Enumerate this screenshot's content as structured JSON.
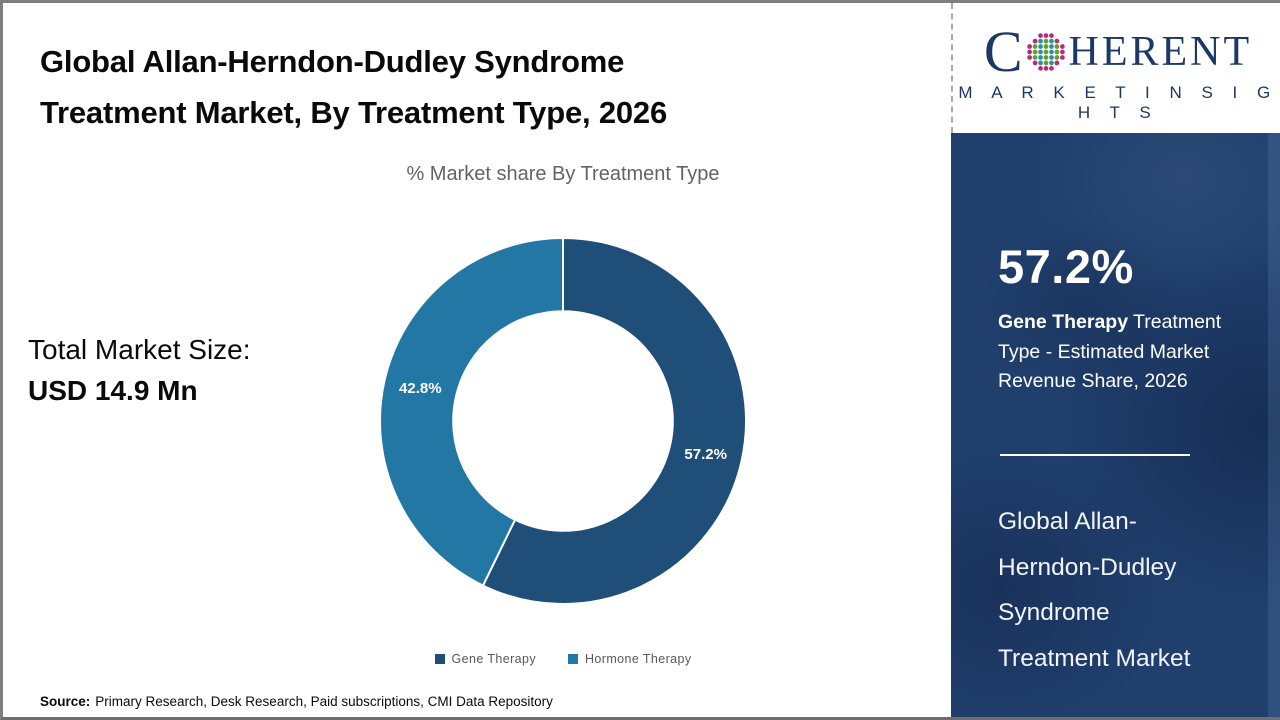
{
  "title": {
    "text": "Global Allan-Herndon-Dudley Syndrome\nTreatment Market, By Treatment Type, 2026"
  },
  "subtitle": "% Market share By Treatment Type",
  "total_market": {
    "label": "Total Market Size:",
    "value": "USD 14.9 Mn"
  },
  "source": {
    "label": "Source:",
    "text": "Primary Research, Desk Research, Paid subscriptions, CMI Data Repository"
  },
  "logo": {
    "first_letter": "C",
    "rest": "HERENT",
    "tagline": "M A R K E T   I N S I G H T S"
  },
  "sidebar": {
    "stat_value": "57.2%",
    "stat_bold": "Gene Therapy",
    "stat_rest": "Treatment Type - Estimated Market Revenue Share, 2026",
    "market_name": "Global Allan-\nHerndon-Dudley\nSyndrome\nTreatment Market"
  },
  "colors": {
    "gene_therapy": "#1f4e79",
    "hormone_therapy": "#2377a4",
    "panel_navy": "#203f6d",
    "logo_navy": "#1d3766",
    "legend_text": "#595959"
  },
  "chart_data": {
    "type": "pie",
    "donut": true,
    "title": "% Market share By Treatment Type",
    "categories": [
      "Gene Therapy",
      "Hormone Therapy"
    ],
    "series": [
      {
        "name": "Gene Therapy",
        "value": 57.2,
        "color": "#1f4e79",
        "label": "57.2%"
      },
      {
        "name": "Hormone Therapy",
        "value": 42.8,
        "color": "#2377a4",
        "label": "42.8%"
      }
    ],
    "start_angle_deg": 0,
    "direction": "clockwise",
    "inner_radius_ratio": 0.6,
    "legend_position": "bottom",
    "data_labels": "inside-white-bold"
  }
}
